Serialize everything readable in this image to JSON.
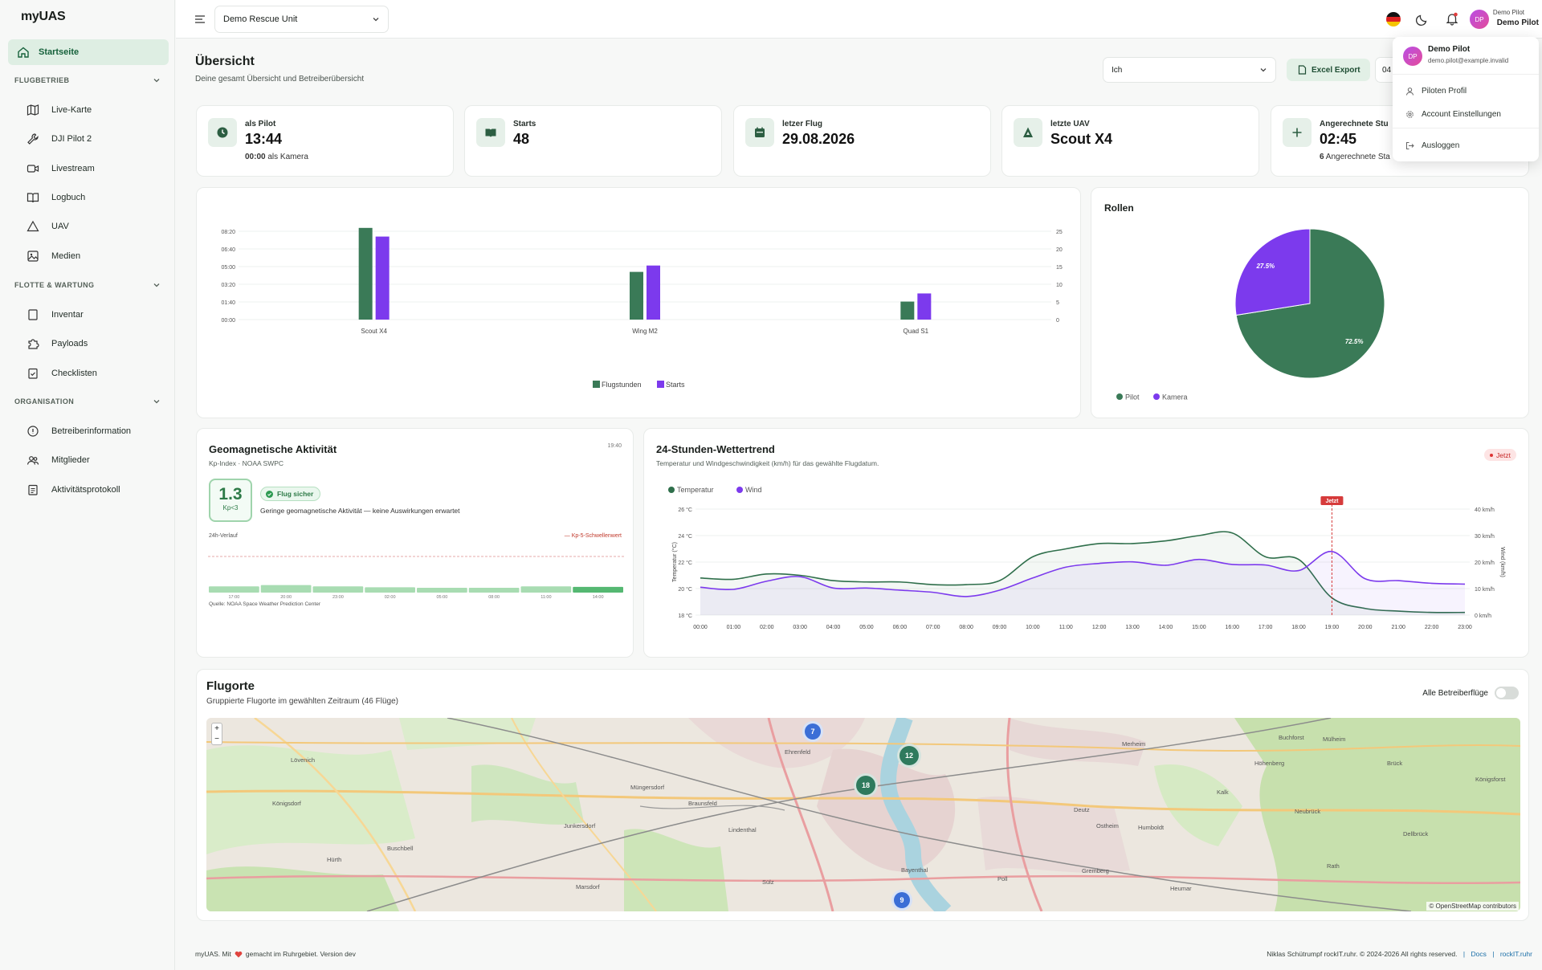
{
  "app": {
    "logo": "myUAS"
  },
  "sidebar": {
    "home": "Startseite",
    "sections": [
      {
        "title": "FLUGBETRIEB",
        "items": [
          "Live-Karte",
          "DJI Pilot 2",
          "Livestream",
          "Logbuch",
          "UAV",
          "Medien"
        ]
      },
      {
        "title": "FLOTTE & WARTUNG",
        "items": [
          "Inventar",
          "Payloads",
          "Checklisten"
        ]
      },
      {
        "title": "ORGANISATION",
        "items": [
          "Betreiberinformation",
          "Mitglieder",
          "Aktivitätsprotokoll"
        ]
      }
    ]
  },
  "topbar": {
    "unit": "Demo Rescue Unit",
    "user_small": "Demo Pilot",
    "user_name": "Demo Pilot",
    "avatar": "DP"
  },
  "header": {
    "title": "Übersicht",
    "subtitle": "Deine gesamt Übersicht und Betreiberübersicht",
    "filter": "Ich",
    "export": "Excel Export",
    "date_partial": "04"
  },
  "stats": [
    {
      "label": "als Pilot",
      "value": "13:44",
      "sub_bold": "00:00",
      "sub": "als Kamera"
    },
    {
      "label": "Starts",
      "value": "48"
    },
    {
      "label": "letzer Flug",
      "value": "29.08.2026"
    },
    {
      "label": "letzte UAV",
      "value": "Scout X4"
    },
    {
      "label": "Angerechnete Stu",
      "value": "02:45",
      "sub_bold": "6",
      "sub": "Angerechnete Sta"
    }
  ],
  "dropdown": {
    "name": "Demo Pilot",
    "email": "demo.pilot@example.invalid",
    "items": [
      "Piloten Profil",
      "Account Einstellungen",
      "Ausloggen"
    ]
  },
  "bar_chart": {
    "chart_data": {
      "type": "bar",
      "categories": [
        "Scout X4",
        "Wing M2",
        "Quad S1"
      ],
      "series": [
        {
          "name": "Flugstunden",
          "values": [
            8.65,
            4.5,
            1.7
          ],
          "color": "#3a7a57"
        },
        {
          "name": "Starts",
          "values": [
            23.5,
            15.3,
            7.4
          ],
          "color": "#7c3aed"
        }
      ],
      "left_ticks": [
        "00:00",
        "01:40",
        "03:20",
        "05:00",
        "06:40",
        "08:20"
      ],
      "right_ticks": [
        "0",
        "5",
        "10",
        "15",
        "20",
        "25"
      ],
      "ylim_hours": [
        0,
        8.333
      ],
      "ylim_starts": [
        0,
        25
      ],
      "legend": "bottom"
    }
  },
  "pie": {
    "title": "Rollen",
    "chart_data": {
      "type": "pie",
      "slices": [
        {
          "name": "Pilot",
          "value": 72.5,
          "label": "72.5%",
          "color": "#3a7a57"
        },
        {
          "name": "Kamera",
          "value": 27.5,
          "label": "27.5%",
          "color": "#7c3aed"
        }
      ],
      "legend": "bottom-left"
    }
  },
  "geo": {
    "title": "Geomagnetische Aktivität",
    "source_line": "Kp-Index · NOAA SWPC",
    "time": "19:40",
    "kp_value": "1.3",
    "kp_label": "Kp<3",
    "badge": "Flug sicher",
    "desc": "Geringe geomagnetische Aktivität — keine Auswirkungen erwartet",
    "history_label": "24h-Verlauf",
    "threshold_label": "— Kp-5-Schwellenwert",
    "source": "Quelle: NOAA Space Weather Prediction Center",
    "chart_data": {
      "type": "bar",
      "x": [
        "17:00",
        "20:00",
        "23:00",
        "02:00",
        "05:00",
        "08:00",
        "11:00",
        "14:00"
      ],
      "values": [
        1.4,
        1.7,
        1.4,
        1.2,
        1.1,
        1.1,
        1.4,
        1.3
      ],
      "threshold": 5
    }
  },
  "weather": {
    "title": "24-Stunden-Wettertrend",
    "subtitle": "Temperatur und Windgeschwindigkeit (km/h) für das gewählte Flugdatum.",
    "now_badge": "Jetzt",
    "now_marker": "Jetzt",
    "chart_data": {
      "type": "line",
      "x": [
        "00:00",
        "01:00",
        "02:00",
        "03:00",
        "04:00",
        "05:00",
        "06:00",
        "07:00",
        "08:00",
        "09:00",
        "10:00",
        "11:00",
        "12:00",
        "13:00",
        "14:00",
        "15:00",
        "16:00",
        "17:00",
        "18:00",
        "19:00",
        "20:00",
        "21:00",
        "22:00",
        "23:00"
      ],
      "series": [
        {
          "name": "Temperatur",
          "color": "#2f6f4b",
          "values": [
            20.8,
            20.7,
            21.1,
            21.0,
            20.6,
            20.5,
            20.5,
            20.3,
            20.3,
            20.6,
            22.4,
            23.0,
            23.4,
            23.4,
            23.6,
            24.0,
            24.2,
            22.4,
            22.2,
            19.3,
            18.5,
            18.3,
            18.2,
            18.2
          ]
        },
        {
          "name": "Wind",
          "color": "#7c3aed",
          "values": [
            10.5,
            9.7,
            12.8,
            14.5,
            10.2,
            10.2,
            9.4,
            8.6,
            7.0,
            9.4,
            14.0,
            18.1,
            19.5,
            20.1,
            18.8,
            21.0,
            19.1,
            18.9,
            16.8,
            24.0,
            13.7,
            13.0,
            12.0,
            11.7
          ]
        }
      ],
      "y_left_ticks": [
        "18 °C",
        "20 °C",
        "22 °C",
        "24 °C",
        "26 °C"
      ],
      "y_right_ticks": [
        "0 km/h",
        "10 km/h",
        "20 km/h",
        "30 km/h",
        "40 km/h"
      ],
      "y_left_label": "Temperatur (°C)",
      "y_right_label": "Wind (km/h)",
      "ylim_left": [
        18,
        26
      ],
      "ylim_right": [
        0,
        40
      ],
      "now_index": 19,
      "legend": "top-left"
    }
  },
  "map": {
    "title": "Flugorte",
    "subtitle": "Gruppierte Flugorte im gewählten Zeitraum (46 Flüge)",
    "toggle_label": "Alle Betreiberflüge",
    "zoom_in": "+",
    "zoom_out": "−",
    "attribution": "© OpenStreetMap contributors",
    "clusters": [
      "7",
      "12",
      "18",
      "9"
    ],
    "places": [
      "Mülheim",
      "Buchforst",
      "Höhenberg",
      "Kalk",
      "Neubrück",
      "Humboldt",
      "Ostheim",
      "Deutz",
      "Ehrenfeld",
      "Lindenthal",
      "Braunsfeld",
      "Müngersdorf",
      "Junkersdorf",
      "Lövenich",
      "Königsdorf",
      "Sülz",
      "Bayenthal",
      "Marsdorf",
      "Hürth",
      "Gremberg",
      "Poll",
      "Rath",
      "Heumar",
      "Brück",
      "Merheim",
      "Dellbrück",
      "Königsforst",
      "Buschbell"
    ]
  },
  "footer": {
    "left_a": "myUAS. Mit",
    "left_b": "gemacht im Ruhrgebiet. Version dev",
    "right": "Niklas Schütrumpf rockIT.ruhr. © 2024-2026 All rights reserved.",
    "links": [
      "Docs",
      "rockIT.ruhr"
    ]
  }
}
